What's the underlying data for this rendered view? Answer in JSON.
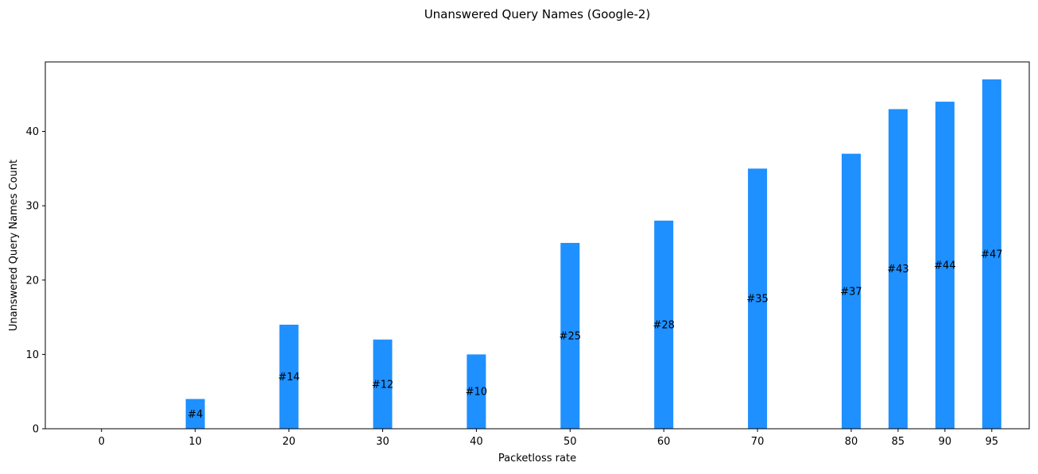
{
  "chart_data": {
    "type": "bar",
    "title": "Unanswered Query Names (Google-2)",
    "xlabel": "Packetloss rate",
    "ylabel": "Unanswered Query Names Count",
    "x": [
      0,
      10,
      20,
      30,
      40,
      50,
      60,
      70,
      80,
      85,
      90,
      95
    ],
    "values": [
      0,
      4,
      14,
      12,
      10,
      25,
      28,
      35,
      37,
      43,
      44,
      47
    ],
    "data_labels": [
      "",
      "#4",
      "#14",
      "#12",
      "#10",
      "#25",
      "#28",
      "#35",
      "#37",
      "#43",
      "#44",
      "#47"
    ],
    "xticks": [
      "0",
      "10",
      "20",
      "30",
      "40",
      "50",
      "60",
      "70",
      "80",
      "85",
      "90",
      "95"
    ],
    "yticks": [
      0,
      10,
      20,
      30,
      40
    ],
    "xlim": [
      -6,
      99
    ],
    "ylim": [
      0,
      49.35
    ],
    "bar_color": "#1e90ff",
    "grid": false,
    "legend": false
  }
}
